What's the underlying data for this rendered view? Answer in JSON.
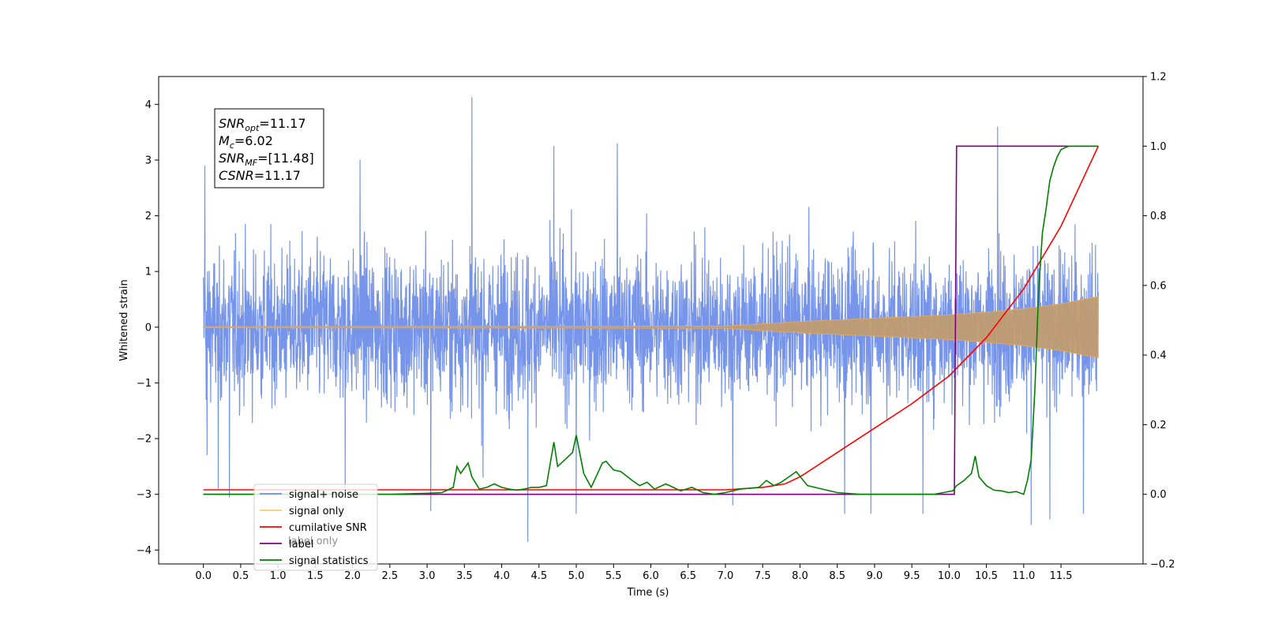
{
  "chart_data": {
    "type": "line",
    "xlabel": "Time (s)",
    "ylabel_left": "Whitened strain",
    "ylabel_right": "",
    "xlim": [
      -0.6,
      12.6
    ],
    "ylim_left": [
      -4.25,
      4.5
    ],
    "ylim_right": [
      -0.2,
      1.2
    ],
    "x_ticks": [
      "0.0",
      "0.5",
      "1.0",
      "1.5",
      "2.0",
      "2.5",
      "3.0",
      "3.5",
      "4.0",
      "4.5",
      "5.0",
      "5.5",
      "6.0",
      "6.5",
      "7.0",
      "7.5",
      "8.0",
      "8.5",
      "9.0",
      "9.5",
      "10.0",
      "10.5",
      "11.0",
      "11.5"
    ],
    "y_ticks_left": [
      "−4",
      "−3",
      "−2",
      "−1",
      "0",
      "1",
      "2",
      "3",
      "4"
    ],
    "y_ticks_right": [
      "−0.2",
      "0.0",
      "0.2",
      "0.4",
      "0.6",
      "0.8",
      "1.0",
      "1.2"
    ],
    "annotation": {
      "lines": [
        {
          "var": "SNR",
          "sub": "opt",
          "val": "=11.17"
        },
        {
          "var": "M",
          "sub": "c",
          "val": "=6.02"
        },
        {
          "var": "SNR",
          "sub": "MF",
          "val": "=[11.48]"
        },
        {
          "var": "CSNR",
          "sub": "",
          "val": "=11.17"
        }
      ]
    },
    "legend": {
      "position": "lower-left",
      "entries": [
        {
          "label": "signal+ noise",
          "color": "#6f8ee8"
        },
        {
          "label": "signal only",
          "color": "#ffc870"
        },
        {
          "label": "cumilative SNR",
          "color": "#ff0000"
        },
        {
          "label": "label",
          "color": "#800080"
        },
        {
          "label": "signal statistics",
          "color": "#008000"
        }
      ],
      "partially_hidden_text": "label only"
    },
    "series": [
      {
        "name": "signal+ noise",
        "axis": "left",
        "color": "#6f8ee8",
        "kind": "noise",
        "x_range": [
          0.0,
          12.0
        ],
        "envelope_typical": 2.4,
        "spikes": [
          {
            "x": 0.02,
            "y": 2.9
          },
          {
            "x": 0.05,
            "y": -2.3
          },
          {
            "x": 0.2,
            "y": -2.9
          },
          {
            "x": 0.35,
            "y": -3.05
          },
          {
            "x": 1.9,
            "y": -2.9
          },
          {
            "x": 2.1,
            "y": 3.0
          },
          {
            "x": 3.05,
            "y": -3.3
          },
          {
            "x": 3.6,
            "y": 4.13
          },
          {
            "x": 3.75,
            "y": -2.7
          },
          {
            "x": 4.35,
            "y": -3.85
          },
          {
            "x": 4.7,
            "y": 3.25
          },
          {
            "x": 5.0,
            "y": -3.35
          },
          {
            "x": 5.55,
            "y": 3.3
          },
          {
            "x": 7.1,
            "y": -3.2
          },
          {
            "x": 8.6,
            "y": -3.35
          },
          {
            "x": 8.95,
            "y": -3.35
          },
          {
            "x": 9.65,
            "y": -3.35
          },
          {
            "x": 10.65,
            "y": 3.6
          },
          {
            "x": 11.35,
            "y": -3.45
          },
          {
            "x": 11.1,
            "y": -3.55
          },
          {
            "x": 11.8,
            "y": -3.35
          }
        ]
      },
      {
        "name": "signal only",
        "axis": "left",
        "color": "#ffc870",
        "kind": "chirp-envelope",
        "x": [
          0.0,
          7.0,
          7.5,
          8.0,
          8.5,
          9.0,
          9.5,
          10.0,
          10.5,
          11.0,
          11.5,
          12.0
        ],
        "amplitude": [
          0.01,
          0.02,
          0.06,
          0.1,
          0.13,
          0.16,
          0.19,
          0.22,
          0.27,
          0.33,
          0.42,
          0.55
        ]
      },
      {
        "name": "cumilative SNR",
        "axis": "right",
        "color": "#ff0000",
        "x": [
          0.0,
          2.5,
          3.0,
          7.0,
          7.5,
          7.8,
          8.0,
          8.5,
          9.0,
          9.5,
          10.0,
          10.5,
          11.0,
          11.5,
          12.0
        ],
        "y": [
          0.013,
          0.013,
          0.013,
          0.013,
          0.02,
          0.03,
          0.05,
          0.12,
          0.19,
          0.26,
          0.34,
          0.45,
          0.59,
          0.77,
          1.0
        ]
      },
      {
        "name": "label",
        "axis": "right",
        "color": "#800080",
        "x": [
          0.0,
          10.07,
          10.1,
          12.0
        ],
        "y": [
          0.0,
          0.0,
          1.0,
          1.0
        ]
      },
      {
        "name": "signal statistics",
        "axis": "right",
        "color": "#008000",
        "x": [
          0.0,
          1.0,
          2.0,
          2.5,
          3.0,
          3.2,
          3.35,
          3.4,
          3.45,
          3.55,
          3.6,
          3.7,
          3.8,
          3.9,
          4.0,
          4.1,
          4.2,
          4.3,
          4.4,
          4.5,
          4.6,
          4.7,
          4.75,
          4.85,
          4.95,
          5.0,
          5.1,
          5.2,
          5.35,
          5.4,
          5.5,
          5.6,
          5.75,
          5.85,
          5.95,
          6.05,
          6.2,
          6.3,
          6.4,
          6.55,
          6.7,
          6.85,
          7.0,
          7.2,
          7.45,
          7.55,
          7.65,
          7.75,
          7.85,
          7.95,
          8.1,
          8.3,
          8.5,
          8.8,
          9.0,
          9.5,
          9.8,
          10.05,
          10.1,
          10.2,
          10.3,
          10.35,
          10.4,
          10.5,
          10.6,
          10.7,
          10.8,
          10.9,
          11.0,
          11.05,
          11.1,
          11.15,
          11.2,
          11.25,
          11.3,
          11.35,
          11.4,
          11.45,
          11.5,
          11.6,
          12.0
        ],
        "y": [
          0.0,
          0.0,
          0.0,
          0.0,
          0.003,
          0.005,
          0.02,
          0.08,
          0.06,
          0.09,
          0.05,
          0.015,
          0.02,
          0.03,
          0.02,
          0.015,
          0.012,
          0.015,
          0.02,
          0.02,
          0.025,
          0.15,
          0.08,
          0.1,
          0.12,
          0.17,
          0.06,
          0.02,
          0.09,
          0.095,
          0.07,
          0.065,
          0.04,
          0.025,
          0.035,
          0.015,
          0.03,
          0.02,
          0.01,
          0.02,
          0.005,
          0.0,
          0.005,
          0.015,
          0.02,
          0.04,
          0.025,
          0.035,
          0.05,
          0.065,
          0.025,
          0.015,
          0.005,
          0.0,
          0.0,
          0.0,
          0.0,
          0.01,
          0.025,
          0.04,
          0.06,
          0.11,
          0.05,
          0.025,
          0.012,
          0.01,
          0.005,
          0.008,
          0.0,
          0.04,
          0.1,
          0.3,
          0.58,
          0.75,
          0.82,
          0.9,
          0.94,
          0.97,
          0.99,
          1.0,
          1.0
        ]
      }
    ]
  }
}
